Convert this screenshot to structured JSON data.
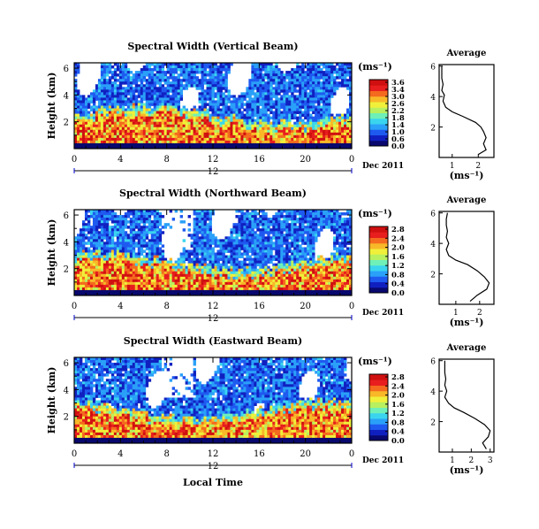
{
  "chart_data": [
    {
      "type": "heatmap",
      "title": "Spectral Width (Vertical Beam)",
      "ylabel": "Height (km)",
      "yticks": [
        "6",
        "4",
        "2"
      ],
      "ylim": [
        0,
        6
      ],
      "xticks": [
        "0",
        "4",
        "8",
        "12",
        "16",
        "20",
        "0"
      ],
      "xlim": [
        0,
        24
      ],
      "date_marker": "12",
      "date_label": "Dec 2011",
      "colorbar": {
        "unit": "(ms⁻¹)",
        "ticks": [
          "3.6",
          "3.4",
          "3.0",
          "2.6",
          "2.2",
          "1.8",
          "1.4",
          "1.0",
          "0.6",
          "0.0"
        ],
        "range": [
          0,
          3.6
        ]
      },
      "average": {
        "title": "Average",
        "xlabel": "(ms⁻¹)",
        "xticks": [
          "1",
          "2"
        ],
        "xlim": [
          0.5,
          2.6
        ],
        "yticks": [
          "6",
          "4",
          "2"
        ],
        "ylim": [
          0,
          6
        ],
        "profile": [
          {
            "h": 0.2,
            "w": 2.0
          },
          {
            "h": 0.5,
            "w": 2.3
          },
          {
            "h": 0.9,
            "w": 2.2
          },
          {
            "h": 1.3,
            "w": 2.3
          },
          {
            "h": 1.7,
            "w": 2.2
          },
          {
            "h": 2.0,
            "w": 2.1
          },
          {
            "h": 2.3,
            "w": 1.9
          },
          {
            "h": 2.7,
            "w": 1.4
          },
          {
            "h": 3.0,
            "w": 1.0
          },
          {
            "h": 3.3,
            "w": 0.75
          },
          {
            "h": 3.7,
            "w": 0.65
          },
          {
            "h": 4.1,
            "w": 0.7
          },
          {
            "h": 4.4,
            "w": 0.6
          },
          {
            "h": 4.8,
            "w": 0.65
          },
          {
            "h": 5.2,
            "w": 0.6
          },
          {
            "h": 5.6,
            "w": 0.6
          },
          {
            "h": 6.0,
            "w": 0.6
          }
        ]
      }
    },
    {
      "type": "heatmap",
      "title": "Spectral Width (Northward Beam)",
      "ylabel": "Height (km)",
      "yticks": [
        "6",
        "4",
        "2"
      ],
      "ylim": [
        0,
        6
      ],
      "xticks": [
        "0",
        "4",
        "8",
        "12",
        "16",
        "20",
        "0"
      ],
      "xlim": [
        0,
        24
      ],
      "date_marker": "12",
      "date_label": "Dec 2011",
      "colorbar": {
        "unit": "(ms⁻¹)",
        "ticks": [
          "2.8",
          "2.4",
          "2.0",
          "1.6",
          "1.2",
          "0.8",
          "0.4",
          "0.0"
        ],
        "range": [
          0,
          2.8
        ]
      },
      "average": {
        "title": "Average",
        "xlabel": "(ms⁻¹)",
        "xticks": [
          "1",
          "2"
        ],
        "xlim": [
          0.3,
          2.6
        ],
        "yticks": [
          "6",
          "4",
          "2"
        ],
        "ylim": [
          0,
          6
        ],
        "profile": [
          {
            "h": 0.2,
            "w": 1.6
          },
          {
            "h": 0.6,
            "w": 1.9
          },
          {
            "h": 1.0,
            "w": 2.3
          },
          {
            "h": 1.4,
            "w": 2.4
          },
          {
            "h": 1.8,
            "w": 2.2
          },
          {
            "h": 2.2,
            "w": 1.9
          },
          {
            "h": 2.6,
            "w": 1.5
          },
          {
            "h": 2.9,
            "w": 1.0
          },
          {
            "h": 3.2,
            "w": 0.7
          },
          {
            "h": 3.6,
            "w": 0.6
          },
          {
            "h": 4.0,
            "w": 0.7
          },
          {
            "h": 4.4,
            "w": 0.6
          },
          {
            "h": 4.8,
            "w": 0.65
          },
          {
            "h": 5.2,
            "w": 0.6
          },
          {
            "h": 5.6,
            "w": 0.6
          },
          {
            "h": 6.0,
            "w": 0.65
          }
        ]
      }
    },
    {
      "type": "heatmap",
      "title": "Spectral Width (Eastward Beam)",
      "ylabel": "Height (km)",
      "yticks": [
        "6",
        "4",
        "2"
      ],
      "ylim": [
        0,
        6
      ],
      "xticks": [
        "0",
        "4",
        "8",
        "12",
        "16",
        "20",
        "0"
      ],
      "xlim": [
        0,
        24
      ],
      "date_marker": "12",
      "date_label": "Dec 2011",
      "xlabel": "Local Time",
      "colorbar": {
        "unit": "(ms⁻¹)",
        "ticks": [
          "2.8",
          "2.4",
          "2.0",
          "1.6",
          "1.2",
          "0.8",
          "0.4",
          "0.0"
        ],
        "range": [
          0,
          2.8
        ]
      },
      "average": {
        "title": "Average",
        "xlabel": "(ms⁻¹)",
        "xticks": [
          "1",
          "2",
          "3"
        ],
        "xlim": [
          0.3,
          3.2
        ],
        "yticks": [
          "6",
          "4",
          "2"
        ],
        "ylim": [
          0,
          6
        ],
        "profile": [
          {
            "h": 0.2,
            "w": 2.8
          },
          {
            "h": 0.6,
            "w": 2.6
          },
          {
            "h": 1.0,
            "w": 2.9
          },
          {
            "h": 1.4,
            "w": 3.0
          },
          {
            "h": 1.8,
            "w": 2.7
          },
          {
            "h": 2.2,
            "w": 2.2
          },
          {
            "h": 2.6,
            "w": 1.6
          },
          {
            "h": 2.9,
            "w": 1.1
          },
          {
            "h": 3.2,
            "w": 0.8
          },
          {
            "h": 3.6,
            "w": 0.6
          },
          {
            "h": 4.0,
            "w": 0.7
          },
          {
            "h": 4.4,
            "w": 0.6
          },
          {
            "h": 4.8,
            "w": 0.65
          },
          {
            "h": 5.2,
            "w": 0.6
          },
          {
            "h": 5.6,
            "w": 0.6
          },
          {
            "h": 6.0,
            "w": 0.6
          }
        ]
      }
    }
  ]
}
